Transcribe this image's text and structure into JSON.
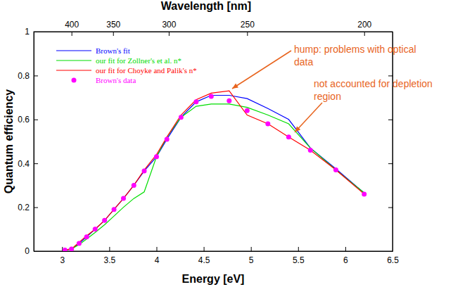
{
  "chart_data": {
    "type": "line",
    "xlabel": "Energy [eV]",
    "ylabel": "Quantum efficiency",
    "x2label": "Wavelength [nm]",
    "xlim": [
      2.7,
      6.5
    ],
    "xticks": [
      3,
      3.5,
      4,
      4.5,
      5,
      5.5,
      6,
      6.5
    ],
    "x2ticks": [
      {
        "value": 3.1,
        "label": "400"
      },
      {
        "value": 3.54,
        "label": "350"
      },
      {
        "value": 4.13,
        "label": "300"
      },
      {
        "value": 4.96,
        "label": "250"
      },
      {
        "value": 6.2,
        "label": "200"
      }
    ],
    "ylim": [
      0,
      1
    ],
    "yticks": [
      0,
      0.2,
      0.4,
      0.6,
      0.8,
      1
    ],
    "legend": "upper left",
    "x": [
      3.03,
      3.1,
      3.18,
      3.26,
      3.35,
      3.45,
      3.55,
      3.65,
      3.76,
      3.87,
      4.0,
      4.11,
      4.26,
      4.42,
      4.58,
      4.77,
      4.96,
      5.18,
      5.4,
      5.63,
      5.9,
      6.2
    ],
    "series": [
      {
        "name": "Brown's fit",
        "color": "#0000ff",
        "type": "line",
        "values": [
          0.005,
          0.01,
          0.035,
          0.065,
          0.1,
          0.14,
          0.19,
          0.24,
          0.3,
          0.365,
          0.43,
          0.51,
          0.61,
          0.68,
          0.71,
          0.71,
          0.695,
          0.65,
          0.6,
          0.47,
          0.375,
          0.265
        ]
      },
      {
        "name": "our fit for Zollner's et al. n*",
        "color": "#00dd00",
        "type": "line",
        "values": [
          0.005,
          0.01,
          0.03,
          0.055,
          0.085,
          0.12,
          0.16,
          0.2,
          0.24,
          0.27,
          0.43,
          0.52,
          0.61,
          0.66,
          0.67,
          0.67,
          0.655,
          0.62,
          0.58,
          0.47,
          0.37,
          0.265
        ]
      },
      {
        "name": "our fit for Choyke and Palik's n*",
        "color": "#ff0000",
        "type": "line",
        "values": [
          0.005,
          0.01,
          0.04,
          0.07,
          0.1,
          0.14,
          0.19,
          0.24,
          0.3,
          0.37,
          0.44,
          0.52,
          0.62,
          0.69,
          0.72,
          0.73,
          0.62,
          0.58,
          0.52,
          0.46,
          0.37,
          0.26
        ]
      },
      {
        "name": "Brown's data",
        "color": "#ff00ff",
        "type": "scatter",
        "marker": "circle",
        "values": [
          0.005,
          0.01,
          0.035,
          0.065,
          0.1,
          0.14,
          0.19,
          0.24,
          0.3,
          0.365,
          0.43,
          0.51,
          0.61,
          0.68,
          0.705,
          0.685,
          0.64,
          0.58,
          0.52,
          0.46,
          0.37,
          0.26
        ]
      }
    ],
    "annotations": [
      {
        "text": [
          "hump: problems with optical",
          "data"
        ],
        "color": "#e8641e"
      },
      {
        "text": [
          "not accounted for depletion",
          "region"
        ],
        "color": "#e8641e"
      }
    ]
  }
}
